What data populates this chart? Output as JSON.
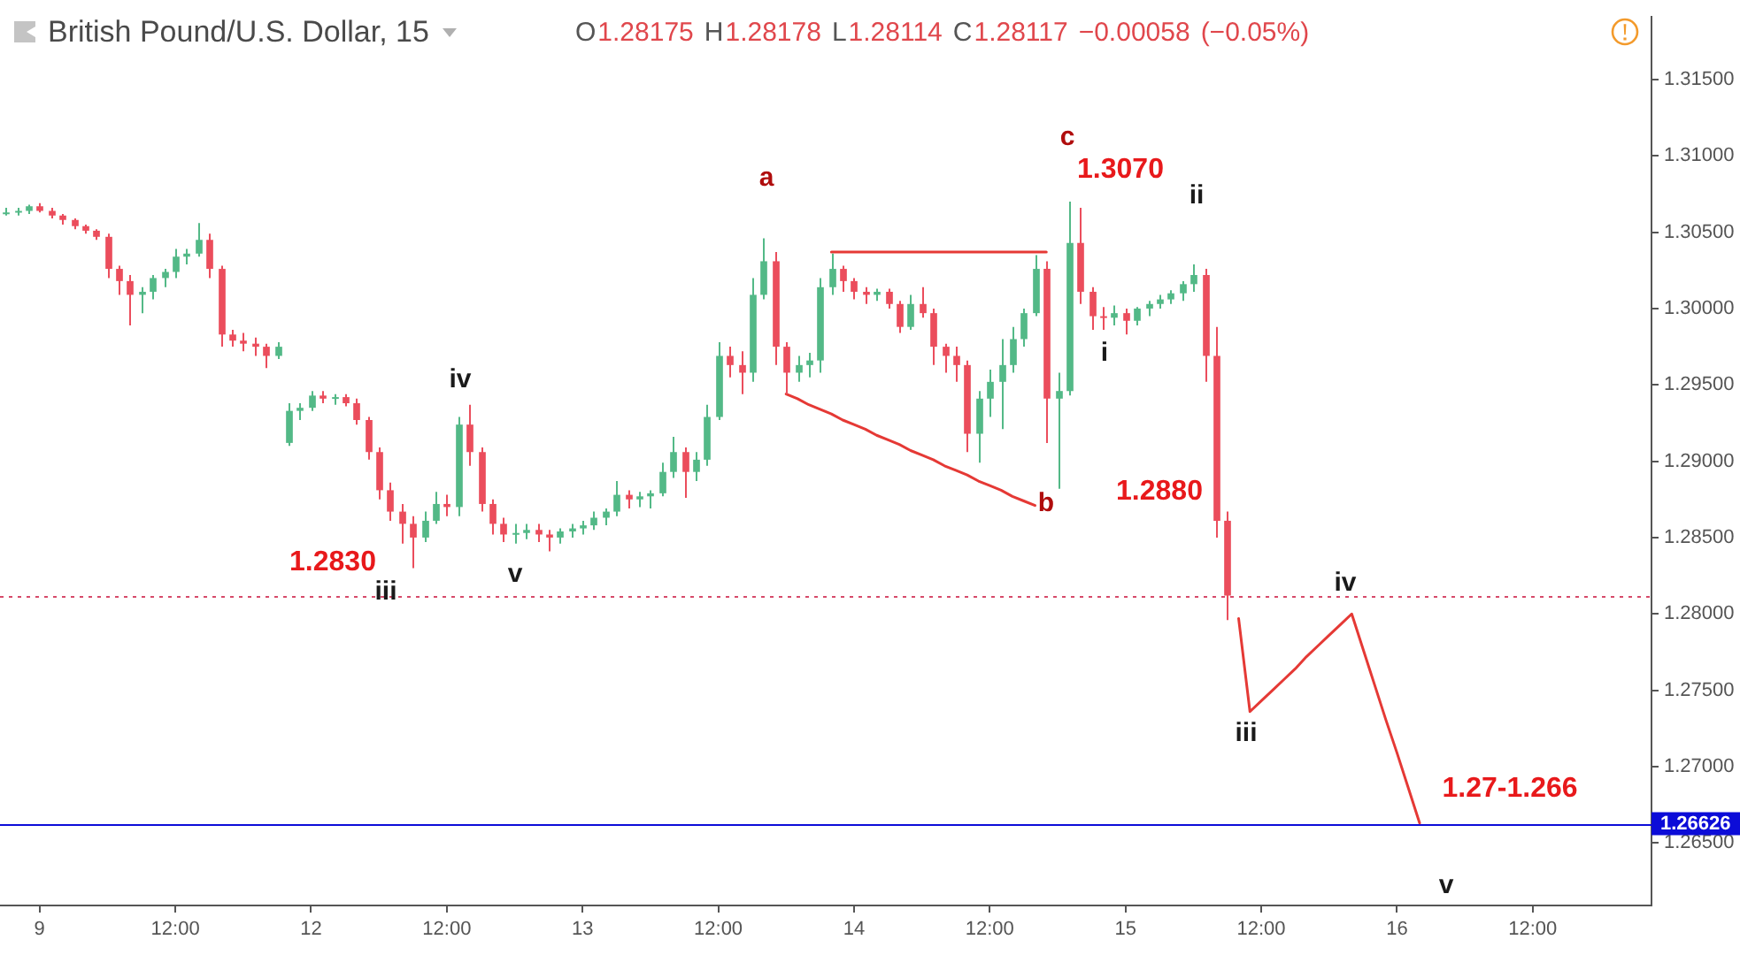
{
  "chart_data": {
    "type": "candlestick",
    "title": "British Pound/U.S. Dollar, 15",
    "subtitle": "O1.28175 H1.28178 L1.28114 C1.28117 −0.00058 (−0.05%)",
    "categories": [
      null,
      null,
      null,
      "9",
      null,
      null,
      null,
      null,
      null,
      null,
      null,
      null,
      null,
      null,
      null,
      "12:00",
      null,
      null,
      null,
      null,
      null,
      null,
      null,
      null,
      null,
      null,
      null,
      "12",
      null,
      null,
      null,
      null,
      null,
      null,
      null,
      null,
      null,
      null,
      null,
      "12:00",
      null,
      null,
      null,
      null,
      null,
      null,
      null,
      null,
      null,
      null,
      null,
      "13",
      null,
      null,
      null,
      null,
      null,
      null,
      null,
      null,
      null,
      null,
      null,
      "12:00",
      null,
      null,
      null,
      null,
      null,
      null,
      null,
      null,
      null,
      null,
      null,
      "14",
      null,
      null,
      null,
      null,
      null,
      null,
      null,
      null,
      null,
      null,
      null,
      "12:00",
      null,
      null,
      null,
      null,
      null,
      null,
      null,
      null,
      null,
      null,
      null,
      "15",
      null,
      null,
      null,
      null,
      null,
      null,
      null,
      null,
      null,
      null,
      null,
      "12:00",
      null,
      null,
      null,
      null,
      null,
      null,
      null,
      null,
      null,
      null,
      null,
      "16",
      null,
      null,
      null,
      null,
      null,
      null,
      null,
      null,
      null,
      null,
      null,
      "12:00",
      null,
      null,
      null,
      null,
      null,
      null,
      null,
      null,
      null,
      null
    ],
    "ohlc": [
      [
        1.3063,
        1.3066,
        1.3061,
        1.3063
      ],
      [
        1.3063,
        1.3066,
        1.3061,
        1.3064
      ],
      [
        1.3064,
        1.3068,
        1.3062,
        1.3067
      ],
      [
        1.3067,
        1.3069,
        1.3063,
        1.3064
      ],
      [
        1.3064,
        1.3066,
        1.3059,
        1.3061
      ],
      [
        1.3061,
        1.3062,
        1.3055,
        1.3058
      ],
      [
        1.3058,
        1.3059,
        1.3052,
        1.3054
      ],
      [
        1.3054,
        1.3055,
        1.3049,
        1.3051
      ],
      [
        1.3051,
        1.3052,
        1.3045,
        1.3047
      ],
      [
        1.3047,
        1.3049,
        1.302,
        1.3026
      ],
      [
        1.3026,
        1.3028,
        1.3009,
        1.3018
      ],
      [
        1.3018,
        1.3022,
        1.2989,
        1.3009
      ],
      [
        1.3009,
        1.3014,
        1.2997,
        1.3011
      ],
      [
        1.3011,
        1.3022,
        1.3006,
        1.302
      ],
      [
        1.302,
        1.3026,
        1.3014,
        1.3024
      ],
      [
        1.3024,
        1.3039,
        1.302,
        1.3034
      ],
      [
        1.3034,
        1.3039,
        1.3029,
        1.3036
      ],
      [
        1.3036,
        1.3056,
        1.3034,
        1.3045
      ],
      [
        1.3045,
        1.3049,
        1.302,
        1.3026
      ],
      [
        1.3026,
        1.3028,
        1.2975,
        1.2983
      ],
      [
        1.2983,
        1.2986,
        1.2975,
        1.2979
      ],
      [
        1.2979,
        1.2984,
        1.2972,
        1.2977
      ],
      [
        1.2977,
        1.2981,
        1.2969,
        1.2975
      ],
      [
        1.2975,
        1.2977,
        1.2961,
        1.2969
      ],
      [
        1.2969,
        1.2978,
        1.2967,
        1.2975
      ],
      [
        1.2912,
        1.2938,
        1.291,
        1.2933
      ],
      [
        1.2933,
        1.2938,
        1.2927,
        1.2935
      ],
      [
        1.2935,
        1.2946,
        1.2933,
        1.2943
      ],
      [
        1.2943,
        1.2946,
        1.2938,
        1.2941
      ],
      [
        1.2941,
        1.2944,
        1.2937,
        1.2942
      ],
      [
        1.2942,
        1.2944,
        1.2936,
        1.2938
      ],
      [
        1.2938,
        1.2941,
        1.2924,
        1.2927
      ],
      [
        1.2927,
        1.2929,
        1.2901,
        1.2906
      ],
      [
        1.2906,
        1.2909,
        1.2875,
        1.2881
      ],
      [
        1.2881,
        1.2886,
        1.2861,
        1.2867
      ],
      [
        1.2867,
        1.2872,
        1.2846,
        1.2859
      ],
      [
        1.2859,
        1.2864,
        1.283,
        1.285
      ],
      [
        1.285,
        1.2867,
        1.2847,
        1.2861
      ],
      [
        1.2861,
        1.288,
        1.2859,
        1.2872
      ],
      [
        1.2872,
        1.2878,
        1.2864,
        1.287
      ],
      [
        1.287,
        1.2929,
        1.2864,
        1.2924
      ],
      [
        1.2924,
        1.2937,
        1.2897,
        1.2906
      ],
      [
        1.2906,
        1.2909,
        1.2867,
        1.2872
      ],
      [
        1.2872,
        1.2875,
        1.2852,
        1.2859
      ],
      [
        1.2859,
        1.2863,
        1.2847,
        1.2852
      ],
      [
        1.2852,
        1.2859,
        1.2846,
        1.2853
      ],
      [
        1.2853,
        1.2859,
        1.2849,
        1.2855
      ],
      [
        1.2855,
        1.2859,
        1.2847,
        1.2852
      ],
      [
        1.2852,
        1.2855,
        1.2841,
        1.285
      ],
      [
        1.285,
        1.2856,
        1.2846,
        1.2854
      ],
      [
        1.2854,
        1.2859,
        1.285,
        1.2856
      ],
      [
        1.2856,
        1.2861,
        1.2852,
        1.2858
      ],
      [
        1.2858,
        1.2867,
        1.2855,
        1.2863
      ],
      [
        1.2863,
        1.2869,
        1.2858,
        1.2867
      ],
      [
        1.2867,
        1.2887,
        1.2864,
        1.2878
      ],
      [
        1.2878,
        1.2881,
        1.2869,
        1.2875
      ],
      [
        1.2875,
        1.288,
        1.287,
        1.2877
      ],
      [
        1.2877,
        1.2881,
        1.2869,
        1.2879
      ],
      [
        1.2879,
        1.2899,
        1.2877,
        1.2893
      ],
      [
        1.2893,
        1.2916,
        1.2889,
        1.2906
      ],
      [
        1.2906,
        1.2909,
        1.2876,
        1.2893
      ],
      [
        1.2893,
        1.2906,
        1.2887,
        1.2901
      ],
      [
        1.2901,
        1.2937,
        1.2897,
        1.2929
      ],
      [
        1.2929,
        1.2978,
        1.2927,
        1.2969
      ],
      [
        1.2969,
        1.2975,
        1.2955,
        1.2963
      ],
      [
        1.2963,
        1.2972,
        1.2944,
        1.2958
      ],
      [
        1.2958,
        1.302,
        1.2952,
        1.3009
      ],
      [
        1.3009,
        1.3046,
        1.3006,
        1.3031
      ],
      [
        1.3031,
        1.3037,
        1.2963,
        1.2975
      ],
      [
        1.2975,
        1.2978,
        1.2944,
        1.2958
      ],
      [
        1.2958,
        1.2969,
        1.2952,
        1.2963
      ],
      [
        1.2963,
        1.2971,
        1.2955,
        1.2966
      ],
      [
        1.2966,
        1.302,
        1.2958,
        1.3014
      ],
      [
        1.3014,
        1.3036,
        1.3009,
        1.3026
      ],
      [
        1.3026,
        1.3028,
        1.3011,
        1.3018
      ],
      [
        1.3018,
        1.302,
        1.3006,
        1.3011
      ],
      [
        1.3011,
        1.3014,
        1.3003,
        1.3009
      ],
      [
        1.3009,
        1.3013,
        1.3005,
        1.3011
      ],
      [
        1.3011,
        1.3013,
        1.3,
        1.3003
      ],
      [
        1.3003,
        1.3005,
        1.2984,
        1.2988
      ],
      [
        1.2988,
        1.3009,
        1.2986,
        1.3003
      ],
      [
        1.3003,
        1.3014,
        1.2994,
        1.2997
      ],
      [
        1.2997,
        1.3,
        1.2963,
        1.2975
      ],
      [
        1.2975,
        1.2977,
        1.2958,
        1.2969
      ],
      [
        1.2969,
        1.2975,
        1.2952,
        1.2963
      ],
      [
        1.2963,
        1.2966,
        1.2906,
        1.2918
      ],
      [
        1.2918,
        1.2946,
        1.2899,
        1.2941
      ],
      [
        1.2941,
        1.296,
        1.2929,
        1.2952
      ],
      [
        1.2952,
        1.298,
        1.2921,
        1.2963
      ],
      [
        1.2963,
        1.2988,
        1.2958,
        1.298
      ],
      [
        1.298,
        1.3,
        1.2975,
        1.2997
      ],
      [
        1.2997,
        1.3035,
        1.2995,
        1.3026
      ],
      [
        1.3026,
        1.3031,
        1.2912,
        1.2941
      ],
      [
        1.2941,
        1.2958,
        1.2882,
        1.2946
      ],
      [
        1.2946,
        1.307,
        1.2943,
        1.3043
      ],
      [
        1.3043,
        1.3066,
        1.3003,
        1.3011
      ],
      [
        1.3011,
        1.3014,
        1.2986,
        1.2995
      ],
      [
        1.2995,
        1.3001,
        1.2986,
        1.2994
      ],
      [
        1.2994,
        1.3002,
        1.2989,
        1.2997
      ],
      [
        1.2997,
        1.3,
        1.2983,
        1.2992
      ],
      [
        1.2992,
        1.3001,
        1.2989,
        1.3
      ],
      [
        1.3,
        1.3005,
        1.2995,
        1.3003
      ],
      [
        1.3003,
        1.3009,
        1.3,
        1.3006
      ],
      [
        1.3006,
        1.3012,
        1.3003,
        1.301
      ],
      [
        1.301,
        1.3018,
        1.3005,
        1.3016
      ],
      [
        1.3016,
        1.3029,
        1.3011,
        1.3022
      ],
      [
        1.3022,
        1.3026,
        1.2952,
        1.2969
      ],
      [
        1.2969,
        1.2988,
        1.285,
        1.2861
      ],
      [
        1.2861,
        1.2867,
        1.2796,
        1.2812
      ],
      null,
      null,
      null,
      null,
      null,
      null,
      null,
      null,
      null,
      null,
      null,
      null,
      null,
      null,
      null,
      null,
      null,
      null,
      null,
      null,
      null,
      null,
      null,
      null,
      null,
      null,
      null,
      null,
      null,
      null,
      null,
      null,
      null,
      null,
      null,
      null,
      null
    ],
    "colors": [
      "#53b987",
      "#53b987",
      "#53b987",
      "#eb4d5c",
      "#eb4d5c",
      "#eb4d5c",
      "#eb4d5c",
      "#eb4d5c",
      "#eb4d5c",
      "#eb4d5c",
      "#eb4d5c",
      "#eb4d5c",
      "#53b987",
      "#53b987",
      "#53b987",
      "#53b987",
      "#53b987",
      "#53b987",
      "#eb4d5c",
      "#eb4d5c",
      "#eb4d5c",
      "#eb4d5c",
      "#eb4d5c",
      "#eb4d5c",
      "#53b987",
      "#53b987",
      "#53b987",
      "#53b987",
      "#eb4d5c",
      "#53b987",
      "#eb4d5c",
      "#eb4d5c",
      "#eb4d5c",
      "#eb4d5c",
      "#eb4d5c",
      "#eb4d5c",
      "#eb4d5c",
      "#53b987",
      "#53b987",
      "#eb4d5c",
      "#53b987",
      "#eb4d5c",
      "#eb4d5c",
      "#eb4d5c",
      "#eb4d5c",
      "#53b987",
      "#53b987",
      "#eb4d5c",
      "#eb4d5c",
      "#53b987",
      "#53b987",
      "#53b987",
      "#53b987",
      "#53b987",
      "#53b987",
      "#eb4d5c",
      "#53b987",
      "#53b987",
      "#53b987",
      "#53b987",
      "#eb4d5c",
      "#53b987",
      "#53b987",
      "#53b987",
      "#eb4d5c",
      "#eb4d5c",
      "#53b987",
      "#53b987",
      "#eb4d5c",
      "#eb4d5c",
      "#53b987",
      "#53b987",
      "#53b987",
      "#53b987",
      "#eb4d5c",
      "#eb4d5c",
      "#eb4d5c",
      "#53b987",
      "#eb4d5c",
      "#eb4d5c",
      "#53b987",
      "#eb4d5c",
      "#eb4d5c",
      "#eb4d5c",
      "#eb4d5c",
      "#eb4d5c",
      "#53b987",
      "#53b987",
      "#53b987",
      "#53b987",
      "#53b987",
      "#53b987",
      "#eb4d5c",
      "#53b987",
      "#53b987",
      "#eb4d5c",
      "#eb4d5c",
      "#eb4d5c",
      "#53b987",
      "#eb4d5c",
      "#53b987",
      "#53b987",
      "#53b987",
      "#53b987",
      "#53b987",
      "#53b987",
      "#eb4d5c",
      "#eb4d5c",
      "#eb4d5c",
      null,
      null,
      null,
      null,
      null,
      null,
      null,
      null,
      null,
      null,
      null,
      null,
      null,
      null,
      null,
      null,
      null,
      null,
      null,
      null,
      null,
      null,
      null,
      null,
      null,
      null,
      null,
      null,
      null,
      null,
      null,
      null,
      null,
      null,
      null,
      null,
      null
    ],
    "series": [
      {
        "type": "line",
        "color": "#e53935",
        "values": [
          null,
          null,
          null,
          null,
          null,
          null,
          null,
          null,
          null,
          null,
          null,
          null,
          null,
          null,
          null,
          null,
          null,
          null,
          null,
          null,
          null,
          null,
          null,
          null,
          null,
          null,
          null,
          null,
          null,
          null,
          null,
          null,
          null,
          null,
          null,
          null,
          null,
          null,
          null,
          null,
          null,
          null,
          null,
          null,
          null,
          null,
          null,
          null,
          null,
          null,
          null,
          null,
          null,
          null,
          null,
          null,
          null,
          null,
          null,
          null,
          null,
          null,
          null,
          null,
          null,
          null,
          null,
          null,
          null,
          null,
          null,
          null,
          null,
          1.3037,
          1.3037,
          1.3037,
          1.3037,
          1.3037,
          1.3037,
          1.3037,
          1.3037,
          1.3037,
          1.3037,
          1.3037,
          1.3037,
          1.3037,
          1.3037,
          1.3037,
          1.3037,
          1.3037,
          1.3037,
          1.3037,
          1.3037,
          null,
          null,
          null,
          null,
          null,
          null,
          null,
          null,
          null,
          null,
          null,
          null,
          null,
          null,
          null,
          null,
          null,
          null,
          null,
          null,
          null,
          null,
          null,
          null,
          null,
          null,
          null,
          null,
          null,
          null,
          null,
          null,
          null,
          null,
          null,
          null,
          null,
          null,
          null,
          null,
          null,
          null,
          null,
          null,
          null,
          null,
          null,
          null,
          null,
          null,
          null,
          null,
          null
        ]
      },
      {
        "type": "line",
        "color": "#e53935",
        "values": [
          null,
          null,
          null,
          null,
          null,
          null,
          null,
          null,
          null,
          null,
          null,
          null,
          null,
          null,
          null,
          null,
          null,
          null,
          null,
          null,
          null,
          null,
          null,
          null,
          null,
          null,
          null,
          null,
          null,
          null,
          null,
          null,
          null,
          null,
          null,
          null,
          null,
          null,
          null,
          null,
          null,
          null,
          null,
          null,
          null,
          null,
          null,
          null,
          null,
          null,
          null,
          null,
          null,
          null,
          null,
          null,
          null,
          null,
          null,
          null,
          null,
          null,
          null,
          null,
          null,
          null,
          null,
          null,
          null,
          1.2944,
          1.2941,
          1.2937,
          1.2934,
          1.2931,
          1.2927,
          1.2924,
          1.2921,
          1.2917,
          1.2914,
          1.2911,
          1.2907,
          1.2904,
          1.2901,
          1.2897,
          1.2894,
          1.2891,
          1.2887,
          1.2884,
          1.2881,
          1.2877,
          1.2874,
          1.2871,
          null,
          null,
          null,
          null,
          null,
          null,
          null,
          null,
          null,
          null,
          null,
          null,
          null,
          null,
          null,
          null,
          null,
          null,
          null,
          null,
          null,
          null,
          null,
          null,
          null,
          null,
          null,
          null,
          null,
          null,
          null,
          null,
          null,
          null,
          null,
          null,
          null,
          null,
          null,
          null,
          null,
          null,
          null,
          null,
          null,
          null,
          null,
          null,
          null,
          null,
          null,
          null,
          null,
          null
        ]
      },
      {
        "type": "line",
        "color": "#e53935",
        "values": [
          null,
          null,
          null,
          null,
          null,
          null,
          null,
          null,
          null,
          null,
          null,
          null,
          null,
          null,
          null,
          null,
          null,
          null,
          null,
          null,
          null,
          null,
          null,
          null,
          null,
          null,
          null,
          null,
          null,
          null,
          null,
          null,
          null,
          null,
          null,
          null,
          null,
          null,
          null,
          null,
          null,
          null,
          null,
          null,
          null,
          null,
          null,
          null,
          null,
          null,
          null,
          null,
          null,
          null,
          null,
          null,
          null,
          null,
          null,
          null,
          null,
          null,
          null,
          null,
          null,
          null,
          null,
          null,
          null,
          null,
          null,
          null,
          null,
          null,
          null,
          null,
          null,
          null,
          null,
          null,
          null,
          null,
          null,
          null,
          null,
          null,
          null,
          null,
          null,
          null,
          null,
          null,
          null,
          null,
          null,
          null,
          null,
          null,
          null,
          null,
          null,
          null,
          null,
          null,
          null,
          null,
          null,
          null,
          null,
          1.2797,
          1.2736,
          1.2743,
          1.275,
          1.2757,
          1.2764,
          1.2772,
          1.2779,
          1.2786,
          1.2793,
          1.28,
          1.2777,
          1.2754,
          1.2731,
          1.2709,
          1.2686,
          1.2663,
          null,
          null,
          null,
          null,
          null,
          null,
          null,
          null,
          null,
          null,
          null,
          null,
          null,
          null,
          null,
          null,
          null,
          null,
          null,
          null
        ]
      }
    ],
    "ylim": [
      1.2609,
      1.3191
    ],
    "yticks": [
      {
        "value": 1.265,
        "label": "1.26500"
      },
      {
        "value": 1.27,
        "label": "1.27000"
      },
      {
        "value": 1.275,
        "label": "1.27500"
      },
      {
        "value": 1.28,
        "label": "1.28000"
      },
      {
        "value": 1.285,
        "label": "1.28500"
      },
      {
        "value": 1.29,
        "label": "1.29000"
      },
      {
        "value": 1.295,
        "label": "1.29500"
      },
      {
        "value": 1.3,
        "label": "1.30000"
      },
      {
        "value": 1.305,
        "label": "1.30500"
      },
      {
        "value": 1.31,
        "label": "1.31000"
      },
      {
        "value": 1.315,
        "label": "1.31500"
      }
    ],
    "ref_lines": [
      {
        "axis": "y",
        "value": 1.28117,
        "color": "#d64a6a",
        "line_style": "dotted"
      },
      {
        "axis": "y",
        "value": 1.26626,
        "label": "1.26626",
        "color": "#0c0cd8"
      }
    ],
    "annotations": [
      "a",
      "b",
      "c",
      "1.3070",
      "1.2880",
      "1.2830",
      "1.27-1.266",
      "iv",
      "iii",
      "v",
      "i",
      "ii",
      "iv",
      "iii",
      "v"
    ]
  }
}
